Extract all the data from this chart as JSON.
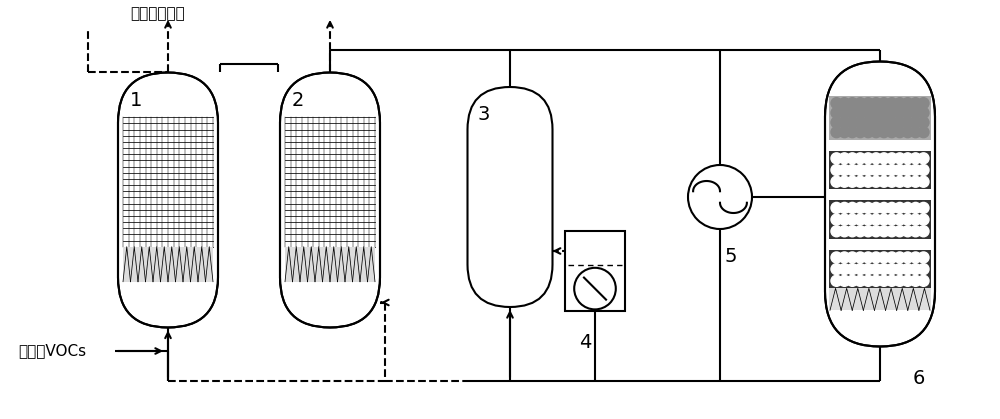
{
  "label_vocs": "高湿度VOCs",
  "label_purified": "净化气体排出",
  "vessel1_label": "1",
  "vessel2_label": "2",
  "vessel3_label": "3",
  "vessel4_label": "4",
  "vessel5_label": "5",
  "vessel6_label": "6",
  "line_color": "#000000",
  "bg_color": "#ffffff",
  "gray_light": "#bbbbbb",
  "gray_dark": "#222222",
  "gray_medium": "#777777",
  "gray_tri": "#cccccc"
}
